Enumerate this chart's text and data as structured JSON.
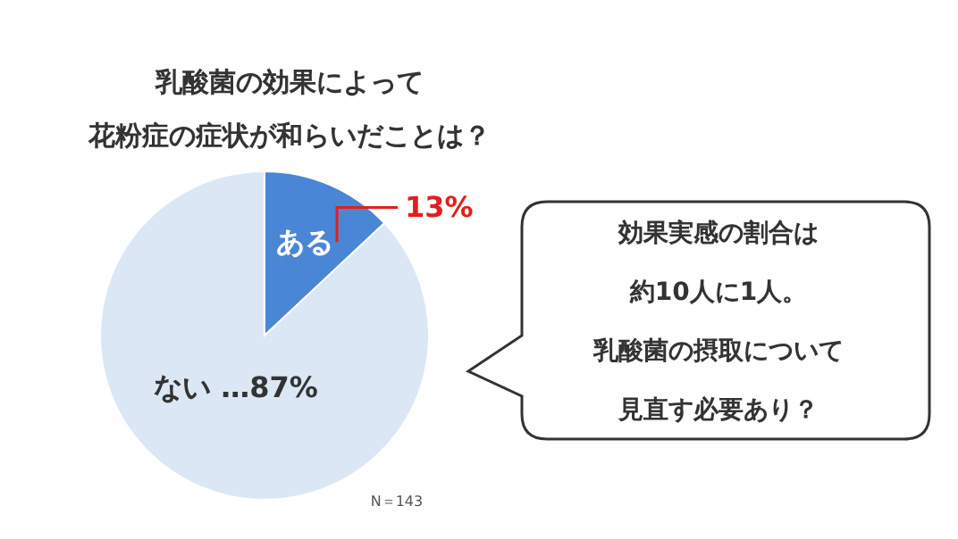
{
  "chart_data": {
    "type": "pie",
    "title": "乳酸菌の効果によって",
    "subtitle": "花粉症の症状が和らいだことは？",
    "categories": [
      "ある",
      "ない"
    ],
    "values": [
      13,
      87
    ],
    "colors": [
      "#4a86d6",
      "#dce7f5"
    ],
    "value_labels": [
      "13%",
      "…87%"
    ],
    "annotations": [
      "効果実感の割合は",
      "約10人に1人。",
      "乳酸菌の摂取について",
      "見直す必要あり？",
      "N＝143"
    ]
  }
}
